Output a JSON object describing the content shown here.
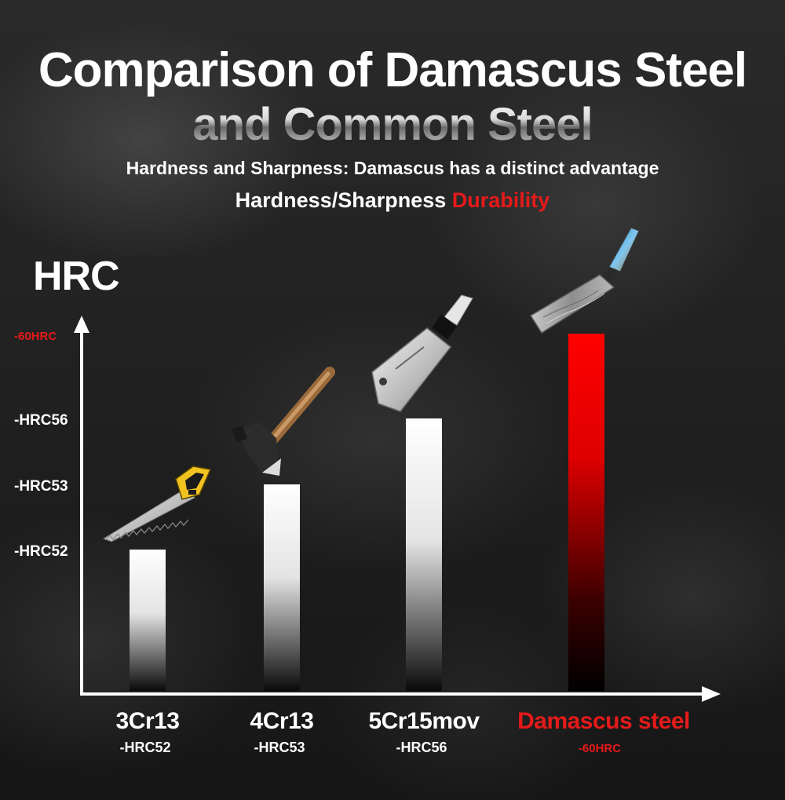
{
  "title_line1": "Comparison of Damascus Steel",
  "title_line2": "and Common Steel",
  "subtitle": "Hardness and Sharpness: Damascus has a distinct advantage",
  "subtitle2": {
    "part1": "Hardness/Sharpness",
    "part2": "Durability"
  },
  "colors": {
    "accent_red": "#e51a1a",
    "bar_white": "#ffffff",
    "bar_red": "#ff0000",
    "text": "#ffffff"
  },
  "chart_data": {
    "type": "bar",
    "ylabel": "HRC",
    "categories": [
      "3Cr13",
      "4Cr13",
      "5Cr15mov",
      "Damascus steel"
    ],
    "category_sublabels": [
      "-HRC52",
      "-HRC53",
      "-HRC56",
      "-60HRC"
    ],
    "values": [
      52,
      53,
      56,
      60
    ],
    "bar_colors": [
      "white",
      "white",
      "white",
      "red"
    ],
    "highlight_category": "Damascus steel",
    "y_ticks": [
      {
        "value": 52,
        "label": "-HRC52",
        "highlight": false
      },
      {
        "value": 53,
        "label": "-HRC53",
        "highlight": false
      },
      {
        "value": 56,
        "label": "-HRC56",
        "highlight": false
      },
      {
        "value": 60,
        "label": "-60HRC",
        "highlight": true
      }
    ],
    "grid": false,
    "legend": "none",
    "icons": [
      "hand-saw-icon",
      "axe-icon",
      "cleaver-icon",
      "damascus-knife-icon"
    ]
  }
}
